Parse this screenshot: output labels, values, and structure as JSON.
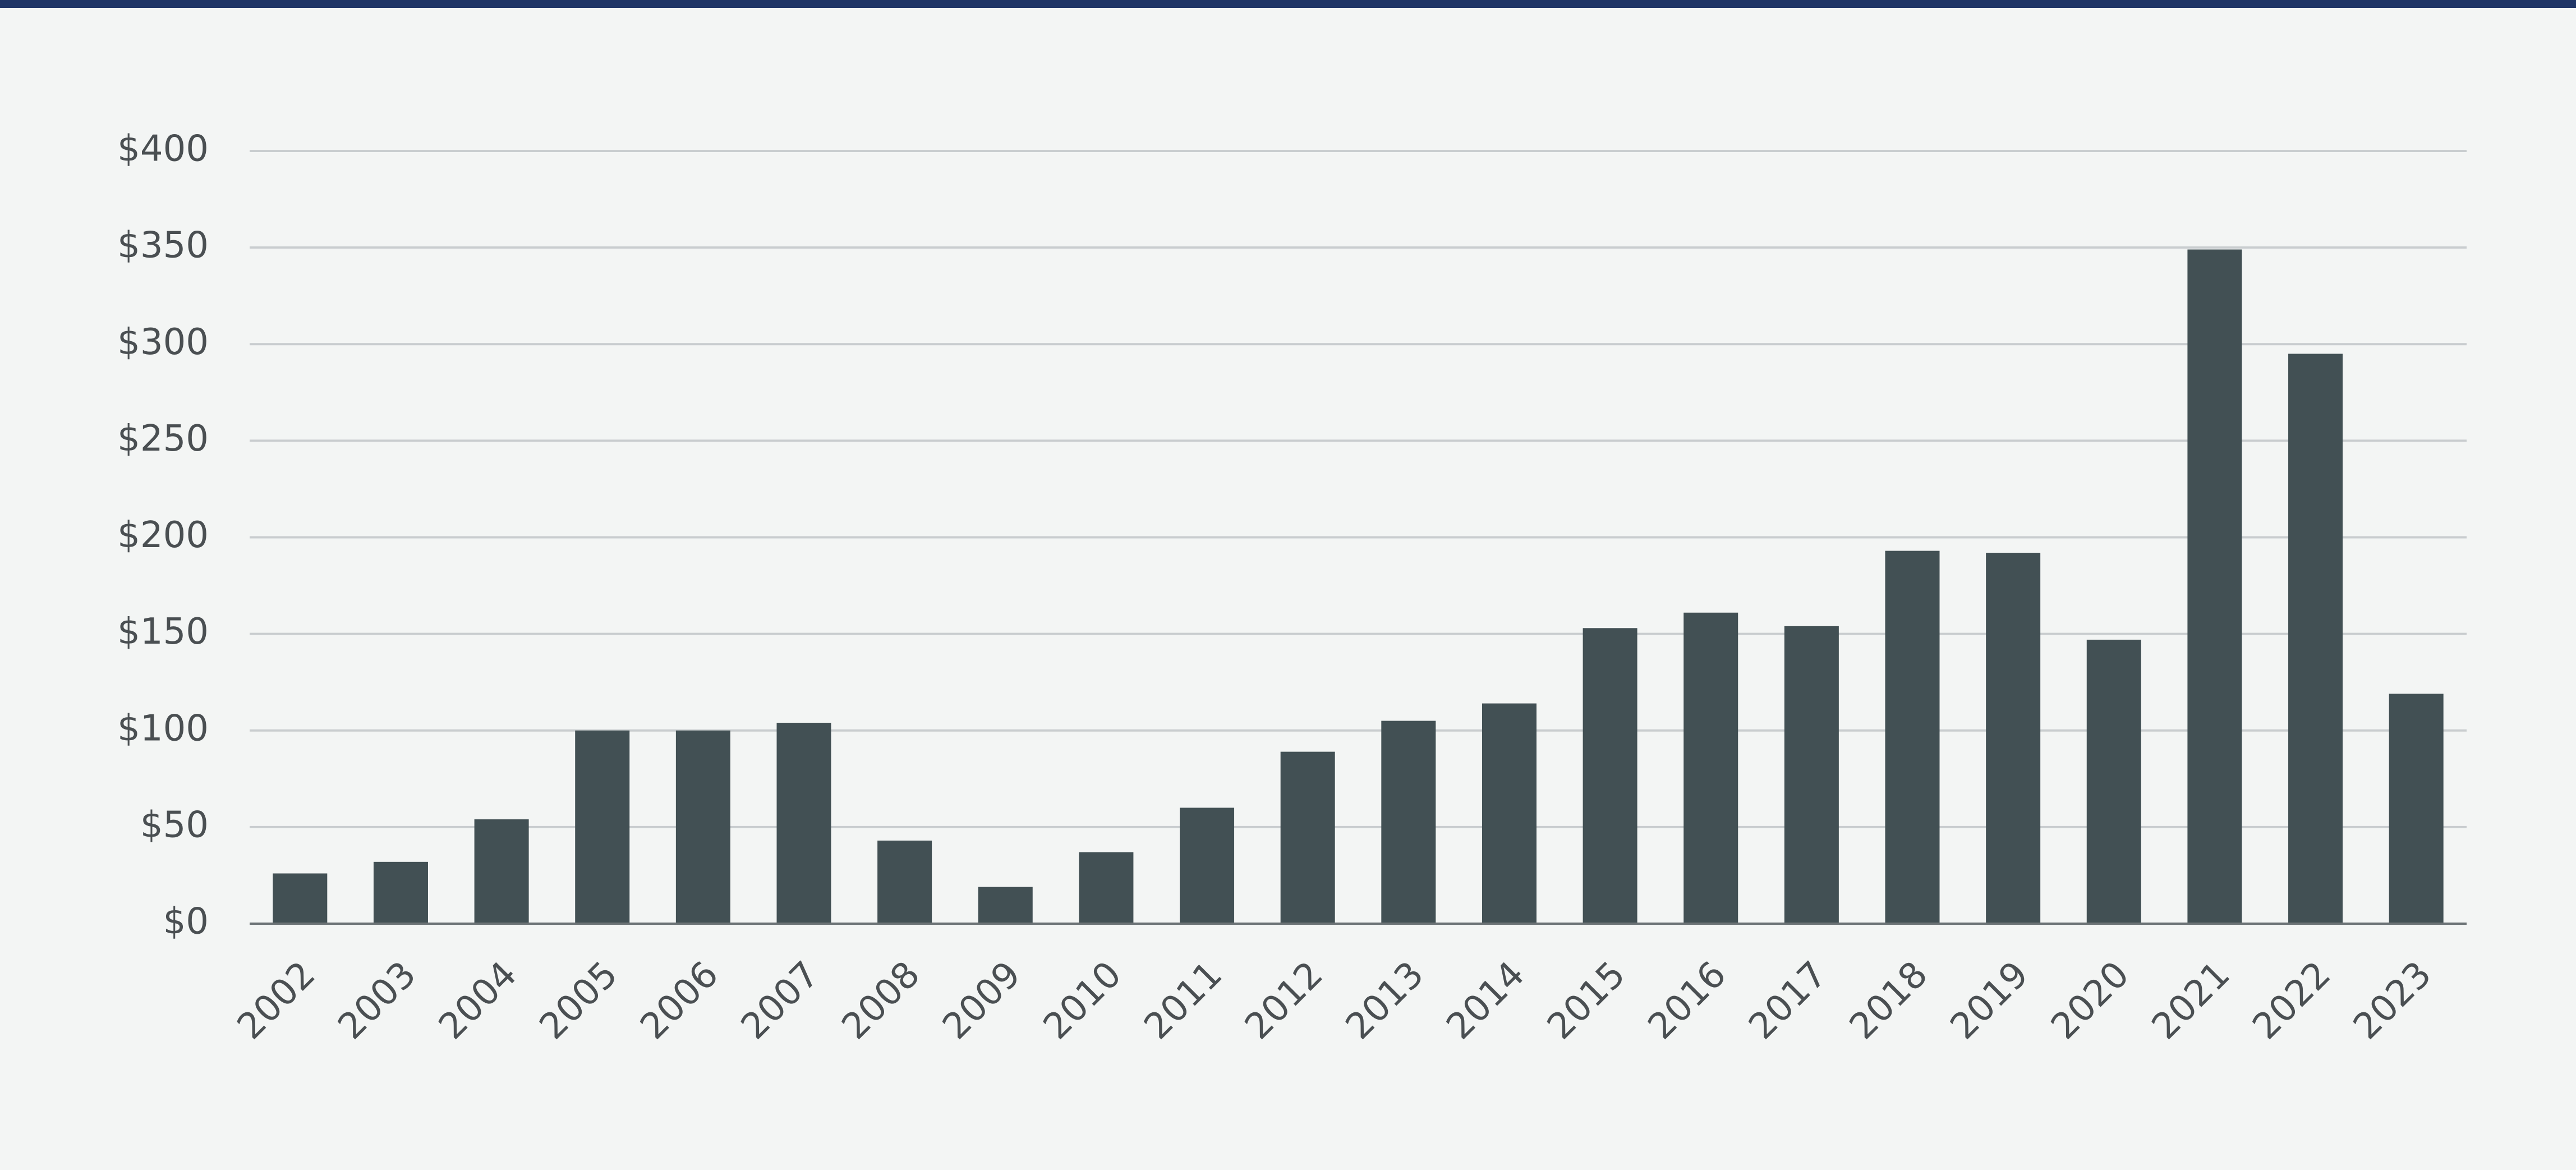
{
  "chart_data": {
    "type": "bar",
    "categories": [
      "2002",
      "2003",
      "2004",
      "2005",
      "2006",
      "2007",
      "2008",
      "2009",
      "2010",
      "2011",
      "2012",
      "2013",
      "2014",
      "2015",
      "2016",
      "2017",
      "2018",
      "2019",
      "2020",
      "2021",
      "2022",
      "2023"
    ],
    "values": [
      26,
      32,
      54,
      100,
      100,
      104,
      43,
      19,
      37,
      60,
      89,
      105,
      114,
      153,
      161,
      154,
      193,
      192,
      147,
      349,
      295,
      119
    ],
    "color": "#425054",
    "ylim": [
      0,
      400
    ],
    "yticks": [
      {
        "value": 0,
        "label": "$0"
      },
      {
        "value": 50,
        "label": "$50"
      },
      {
        "value": 100,
        "label": "$100"
      },
      {
        "value": 150,
        "label": "$150"
      },
      {
        "value": 200,
        "label": "$200"
      },
      {
        "value": 250,
        "label": "$250"
      },
      {
        "value": 300,
        "label": "$300"
      },
      {
        "value": 350,
        "label": "$350"
      },
      {
        "value": 400,
        "label": "$400"
      }
    ],
    "grid": true
  }
}
